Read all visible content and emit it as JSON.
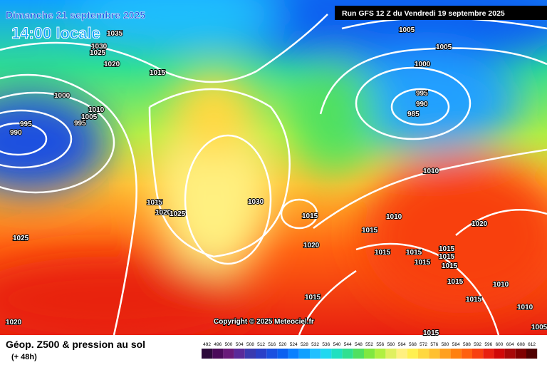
{
  "header": {
    "date": "Dimanche 21 septembre 2025",
    "time": "14:00 locale",
    "run": "Run GFS 12 Z du Vendredi 19 septembre 2025"
  },
  "copyright": "Copyright © 2025 Meteociel.fr",
  "footer": {
    "title": "Géop. Z500 & pression au sol",
    "lead": "(+ 48h)"
  },
  "scale": {
    "levels": [
      492,
      496,
      500,
      504,
      508,
      512,
      516,
      520,
      524,
      528,
      532,
      536,
      540,
      544,
      548,
      552,
      556,
      560,
      564,
      568,
      572,
      576,
      580,
      584,
      588,
      592,
      596,
      600,
      604,
      608,
      612
    ],
    "colors": [
      "#2d0a3b",
      "#4b0a5a",
      "#6a1a7a",
      "#5a2a9a",
      "#3a3ab0",
      "#2a40c8",
      "#1a50e0",
      "#0a60f0",
      "#0a80ff",
      "#10a0ff",
      "#20c0ff",
      "#20d8f0",
      "#20e0c0",
      "#30e090",
      "#50e060",
      "#80e840",
      "#b0f040",
      "#e0f060",
      "#fff080",
      "#fff050",
      "#ffd840",
      "#ffc030",
      "#ffa020",
      "#ff8010",
      "#ff6010",
      "#f84010",
      "#e82010",
      "#d00808",
      "#a80808",
      "#800000",
      "#500000"
    ]
  },
  "isobars": [
    1035,
    1030,
    1025,
    1020,
    1015,
    1000,
    1010,
    1005,
    995,
    995,
    990,
    1005,
    1005,
    1000,
    995,
    990,
    985,
    1010,
    1015,
    1020,
    1025,
    1030,
    1015,
    1010,
    1015,
    1020,
    1015,
    1015,
    1015,
    1015,
    1015,
    1015,
    1020,
    1015,
    1010,
    1015,
    1010,
    1015,
    1015,
    1025,
    1020,
    1005
  ]
}
